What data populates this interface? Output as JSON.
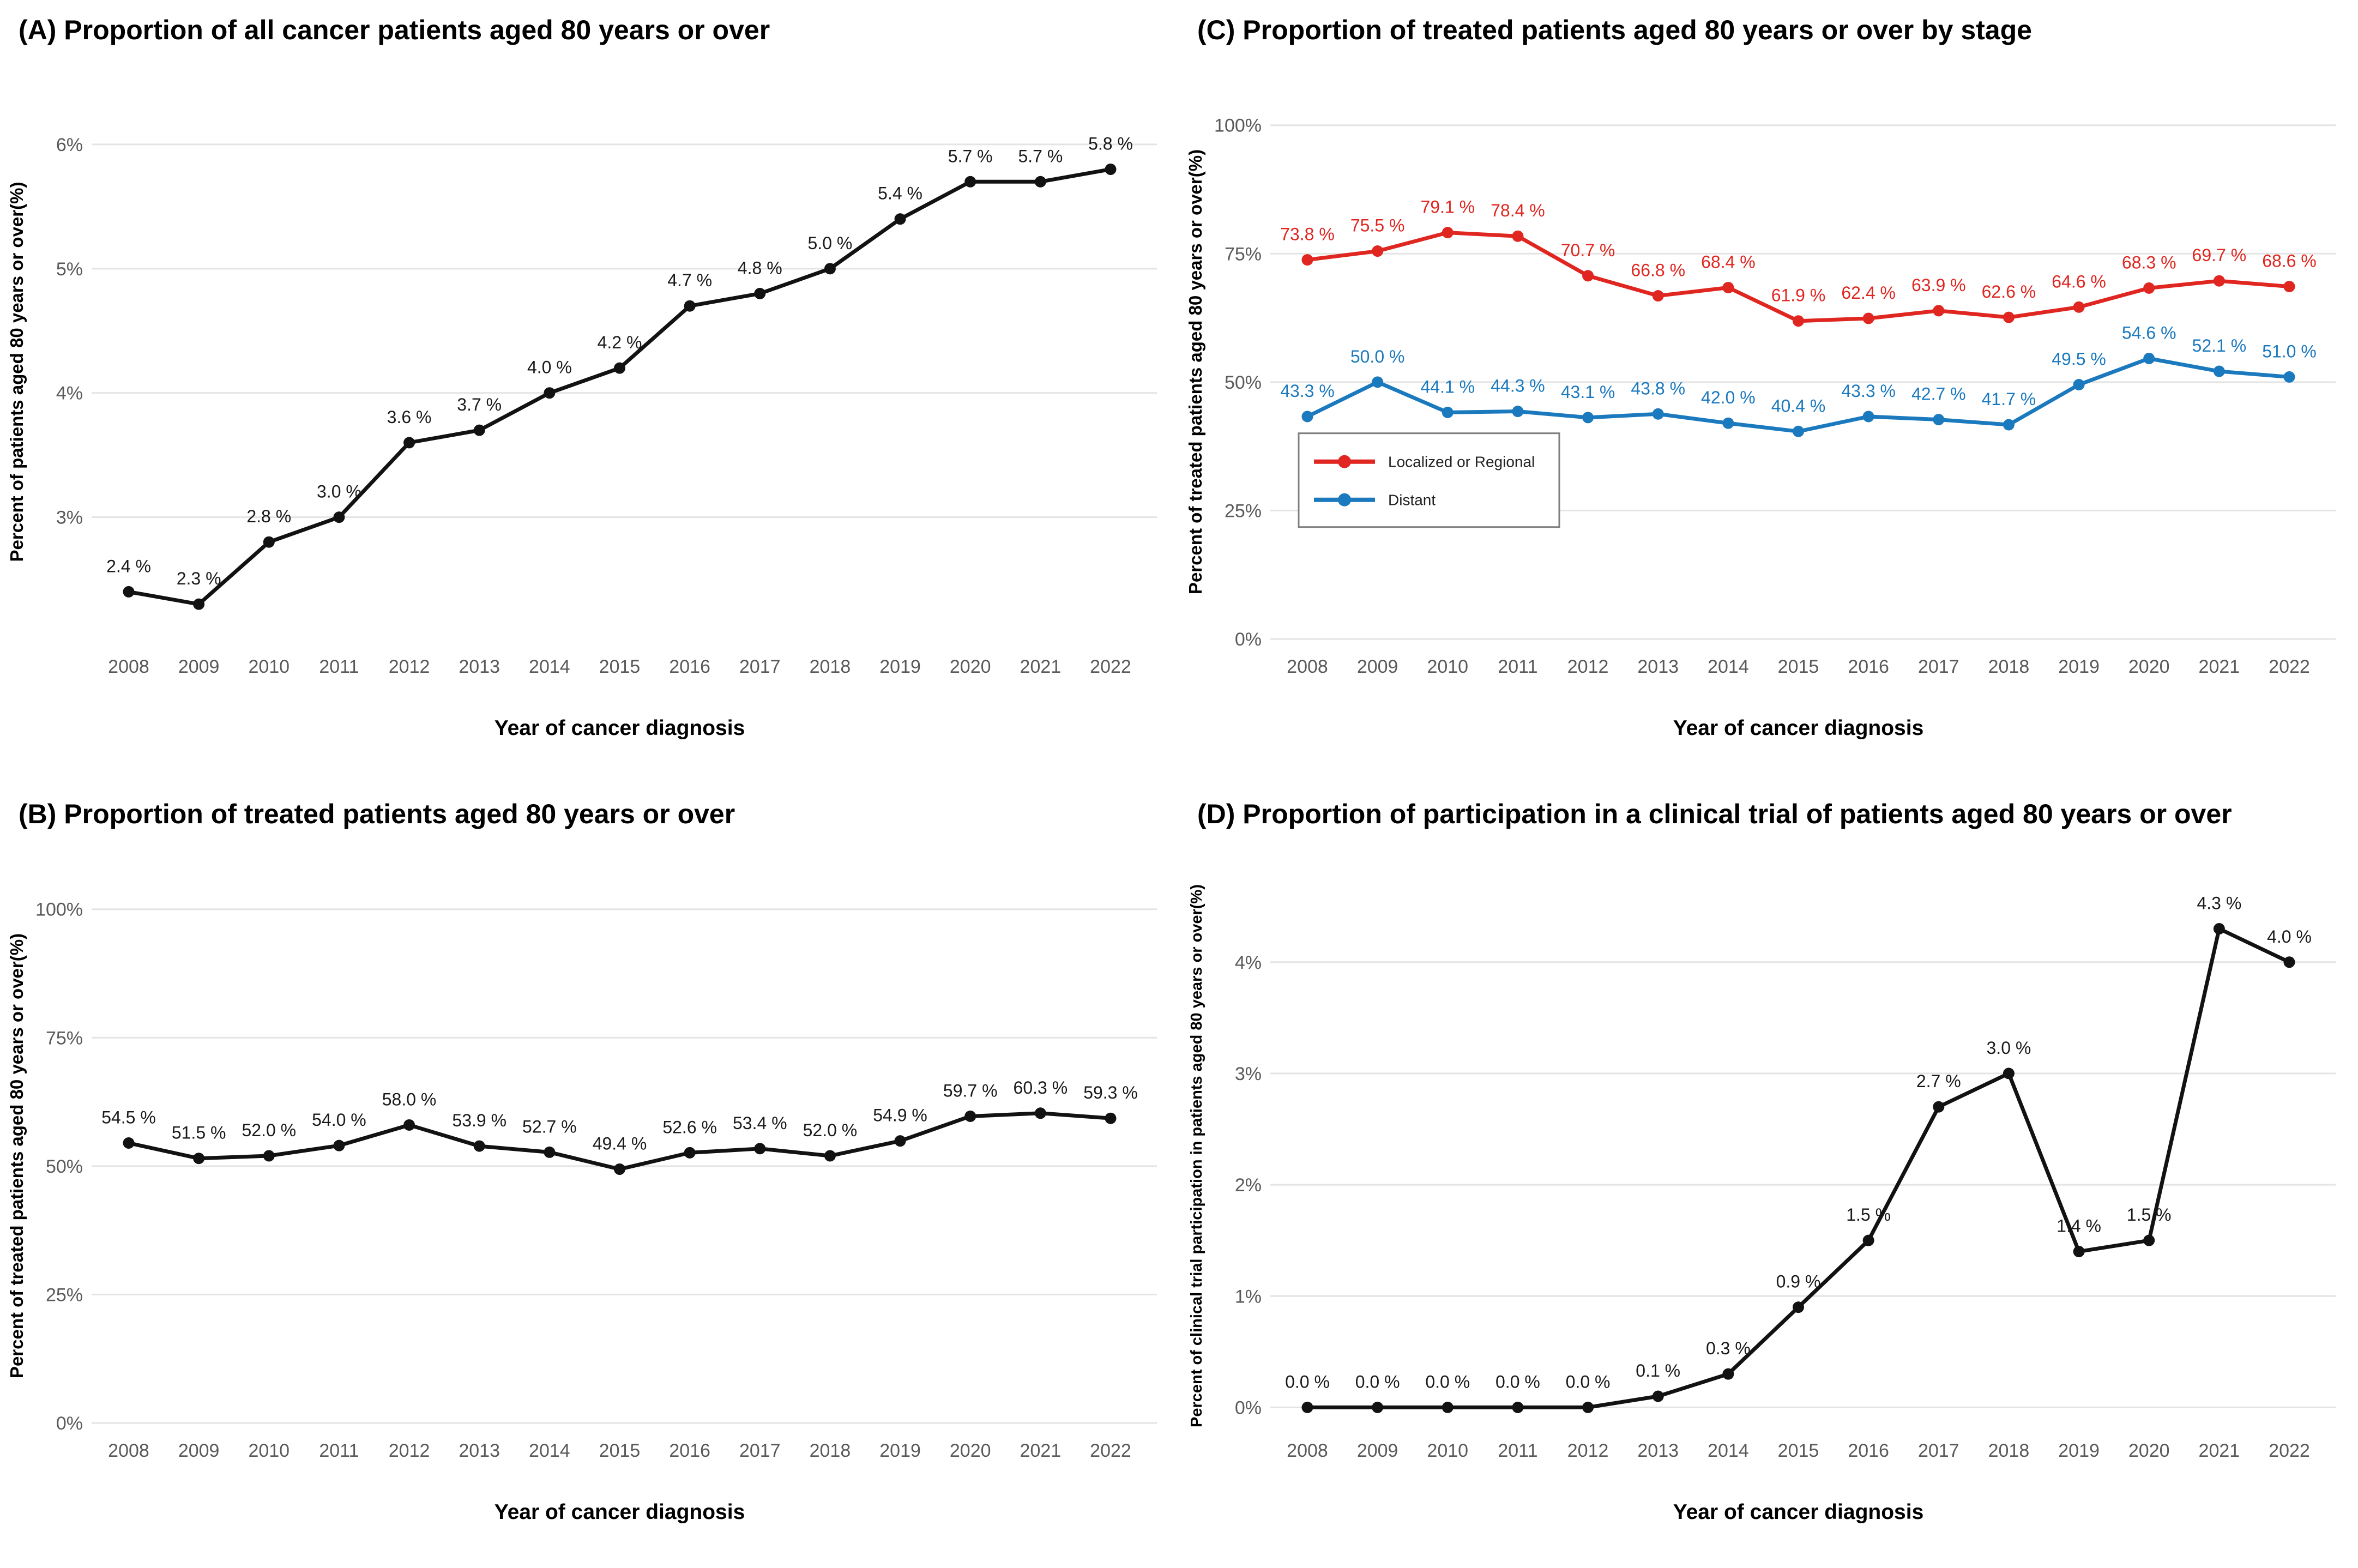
{
  "figure": {
    "x_axis_title": "Year of cancer diagnosis",
    "years": [
      2008,
      2009,
      2010,
      2011,
      2012,
      2013,
      2014,
      2015,
      2016,
      2017,
      2018,
      2019,
      2020,
      2021,
      2022
    ]
  },
  "chart_data": [
    {
      "type": "line",
      "panel": "A",
      "title": "(A) Proportion of all cancer patients aged 80 years or over",
      "xlabel": "Year of cancer diagnosis",
      "ylabel": "Percent of patients aged 80 years or over(%)",
      "x": [
        2008,
        2009,
        2010,
        2011,
        2012,
        2013,
        2014,
        2015,
        2016,
        2017,
        2018,
        2019,
        2020,
        2021,
        2022
      ],
      "series": [
        {
          "color": "#121212",
          "values": [
            2.4,
            2.3,
            2.8,
            3.0,
            3.6,
            3.7,
            4.0,
            4.2,
            4.7,
            4.8,
            5.0,
            5.4,
            5.7,
            5.7,
            5.8
          ],
          "labels": [
            "2.4 %",
            "2.3 %",
            "2.8 %",
            "3.0 %",
            "3.6 %",
            "3.7 %",
            "4.0 %",
            "4.2 %",
            "4.7 %",
            "4.8 %",
            "5.0 %",
            "5.4 %",
            "5.7 %",
            "5.7 %",
            "5.8 %"
          ],
          "label_color": "#1a1a1a"
        }
      ],
      "yticks": [
        3,
        4,
        5,
        6
      ],
      "ytick_labels": [
        "3%",
        "4%",
        "5%",
        "6%"
      ],
      "ylim": [
        2.02,
        6.32
      ],
      "grid": true,
      "legend": false
    },
    {
      "type": "line",
      "panel": "C",
      "title": "(C) Proportion of treated patients aged 80 years or over by stage",
      "xlabel": "Year of cancer diagnosis",
      "ylabel": "Percent of treated patients aged 80 years or over(%)",
      "x": [
        2008,
        2009,
        2010,
        2011,
        2012,
        2013,
        2014,
        2015,
        2016,
        2017,
        2018,
        2019,
        2020,
        2021,
        2022
      ],
      "series": [
        {
          "name": "Localized or Regional",
          "color": "#e02620",
          "values": [
            73.8,
            75.5,
            79.1,
            78.4,
            70.7,
            66.8,
            68.4,
            61.9,
            62.4,
            63.9,
            62.6,
            64.6,
            68.3,
            69.7,
            68.6
          ],
          "labels": [
            "73.8 %",
            "75.5 %",
            "79.1 %",
            "78.4 %",
            "70.7 %",
            "66.8 %",
            "68.4 %",
            "61.9 %",
            "62.4 %",
            "63.9 %",
            "62.6 %",
            "64.6 %",
            "68.3 %",
            "69.7 %",
            "68.6 %"
          ],
          "label_color": "#e02620"
        },
        {
          "name": "Distant",
          "color": "#1b79be",
          "values": [
            43.3,
            50.0,
            44.1,
            44.3,
            43.1,
            43.8,
            42.0,
            40.4,
            43.3,
            42.7,
            41.7,
            49.5,
            54.6,
            52.1,
            51.0
          ],
          "labels": [
            "43.3 %",
            "50.0 %",
            "44.1 %",
            "44.3 %",
            "43.1 %",
            "43.8 %",
            "42.0 %",
            "40.4 %",
            "43.3 %",
            "42.7 %",
            "41.7 %",
            "49.5 %",
            "54.6 %",
            "52.1 %",
            "51.0 %"
          ],
          "label_color": "#1b79be"
        }
      ],
      "yticks": [
        0,
        25,
        50,
        75,
        100
      ],
      "ytick_labels": [
        "0%",
        "25%",
        "50%",
        "75%",
        "100%"
      ],
      "ylim": [
        0,
        104
      ],
      "grid": true,
      "legend": true,
      "legend_position": "inside-left-lower"
    },
    {
      "type": "line",
      "panel": "B",
      "title": "(B) Proportion of treated patients aged 80 years or over",
      "xlabel": "Year of cancer diagnosis",
      "ylabel": "Percent of treated patients aged 80 years or over(%)",
      "x": [
        2008,
        2009,
        2010,
        2011,
        2012,
        2013,
        2014,
        2015,
        2016,
        2017,
        2018,
        2019,
        2020,
        2021,
        2022
      ],
      "series": [
        {
          "color": "#121212",
          "values": [
            54.5,
            51.5,
            52.0,
            54.0,
            58.0,
            53.9,
            52.7,
            49.4,
            52.6,
            53.4,
            52.0,
            54.9,
            59.7,
            60.3,
            59.3
          ],
          "labels": [
            "54.5 %",
            "51.5 %",
            "52.0 %",
            "54.0 %",
            "58.0 %",
            "53.9 %",
            "52.7 %",
            "49.4 %",
            "52.6 %",
            "53.4 %",
            "52.0 %",
            "54.9 %",
            "59.7 %",
            "60.3 %",
            "59.3 %"
          ],
          "label_color": "#1a1a1a"
        }
      ],
      "yticks": [
        0,
        25,
        50,
        75,
        100
      ],
      "ytick_labels": [
        "0%",
        "25%",
        "50%",
        "75%",
        "100%"
      ],
      "ylim": [
        0,
        104
      ],
      "grid": true,
      "legend": false
    },
    {
      "type": "line",
      "panel": "D",
      "title": "(D) Proportion of participation in a clinical trial of patients aged 80 years or over",
      "xlabel": "Year of cancer diagnosis",
      "ylabel": "Percent of clinical trial participation in patients aged 80 years or over(%)",
      "x": [
        2008,
        2009,
        2010,
        2011,
        2012,
        2013,
        2014,
        2015,
        2016,
        2017,
        2018,
        2019,
        2020,
        2021,
        2022
      ],
      "series": [
        {
          "color": "#121212",
          "values": [
            0.0,
            0.0,
            0.0,
            0.0,
            0.0,
            0.1,
            0.3,
            0.9,
            1.5,
            2.7,
            3.0,
            1.4,
            1.5,
            4.3,
            4.0
          ],
          "labels": [
            "0.0 %",
            "0.0 %",
            "0.0 %",
            "0.0 %",
            "0.0 %",
            "0.1 %",
            "0.3 %",
            "0.9 %",
            "1.5 %",
            "2.7 %",
            "3.0 %",
            "1.4 %",
            "1.5 %",
            "4.3 %",
            "4.0 %"
          ],
          "label_color": "#1a1a1a"
        }
      ],
      "yticks": [
        0,
        1,
        2,
        3,
        4
      ],
      "ytick_labels": [
        "0%",
        "1%",
        "2%",
        "3%",
        "4%"
      ],
      "ylim": [
        -0.14,
        4.66
      ],
      "grid": true,
      "legend": false
    }
  ]
}
